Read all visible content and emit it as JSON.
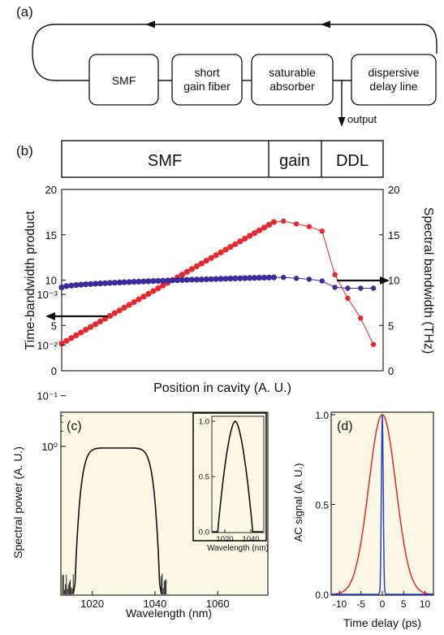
{
  "panel_a": {
    "label": "(a)",
    "boxes": [
      "SMF",
      "short gain fiber",
      "saturable absorber",
      "dispersive delay line"
    ],
    "output_label": "output"
  },
  "panel_b": {
    "label": "(b)",
    "segments": [
      "SMF",
      "gain",
      "DDL"
    ]
  },
  "panel_c": {
    "label": "(c)"
  },
  "panel_d": {
    "label": "(d)"
  },
  "colors": {
    "red": "#e8262c",
    "purple": "#3b2a9b",
    "plot_bg": "#fbf8e6",
    "ac_blue": "#2a3fc8"
  },
  "chart_data": [
    {
      "id": "b",
      "type": "line",
      "xlabel": "Position in cavity (A. U.)",
      "ylabel": "Time-bandwidth product",
      "ylabel_right": "Spectral bandwidth (THz)",
      "ylim": [
        0,
        20
      ],
      "y_ticks": [
        "0",
        "5",
        "10",
        "15",
        "20"
      ],
      "y2lim": [
        0,
        20
      ],
      "y2_ticks": [
        "0",
        "5",
        "10",
        "15",
        "20"
      ],
      "xlim": [
        0,
        100
      ],
      "series": [
        {
          "axis": "left",
          "color": "red",
          "dense": {
            "x_from": 0,
            "x_to": 66,
            "n": 45,
            "y_from": 3.0,
            "y_to": 16.4
          },
          "x": [
            69,
            73,
            77,
            81,
            85,
            89,
            93,
            97
          ],
          "y": [
            16.5,
            16.2,
            15.9,
            15.4,
            10.6,
            8.0,
            5.8,
            2.9
          ]
        },
        {
          "axis": "right",
          "color": "purple",
          "dense": {
            "x_from": 0,
            "x_to": 66,
            "n": 45,
            "y_from": 9.2,
            "y_to": 10.3,
            "shape": "sqrt"
          },
          "x": [
            69,
            73,
            77,
            81,
            85,
            89,
            93,
            97
          ],
          "y": [
            10.3,
            10.2,
            10.1,
            9.9,
            9.2,
            9.1,
            9.1,
            9.1
          ]
        }
      ]
    },
    {
      "id": "c",
      "type": "line",
      "xlabel": "Wavelength (nm)",
      "ylabel": "Spectral power (A. U.)",
      "xlim": [
        1010,
        1076
      ],
      "x_ticks": [
        "1020",
        "1040",
        "1060"
      ],
      "y_scale": "log",
      "y_ticks": [
        "10⁻³",
        "10⁻²",
        "10⁻¹",
        "10⁰"
      ],
      "center_nm": 1028,
      "edges_nm": [
        1014.5,
        1041.5
      ]
    },
    {
      "id": "c_inset",
      "type": "line",
      "xlabel": "Wavelength (nm)",
      "xlim": [
        1010,
        1050
      ],
      "x_ticks": [
        "1020",
        "1040"
      ],
      "ylim": [
        0,
        1.0
      ],
      "y_ticks": [
        "0.0",
        "0.5",
        "1.0"
      ]
    },
    {
      "id": "d",
      "type": "line",
      "xlabel": "Time delay (ps)",
      "ylabel": "AC signal (A. U.)",
      "xlim": [
        -12,
        12
      ],
      "x_ticks": [
        "-10",
        "-5",
        "0",
        "5",
        "10"
      ],
      "ylim": [
        0,
        1.0
      ],
      "y_ticks": [
        "0.0",
        "0.5",
        "1.0"
      ],
      "series": [
        {
          "color": "red",
          "fwhm_ps": 7.5
        },
        {
          "color": "ac_blue",
          "fwhm_ps": 0.5
        }
      ]
    }
  ]
}
